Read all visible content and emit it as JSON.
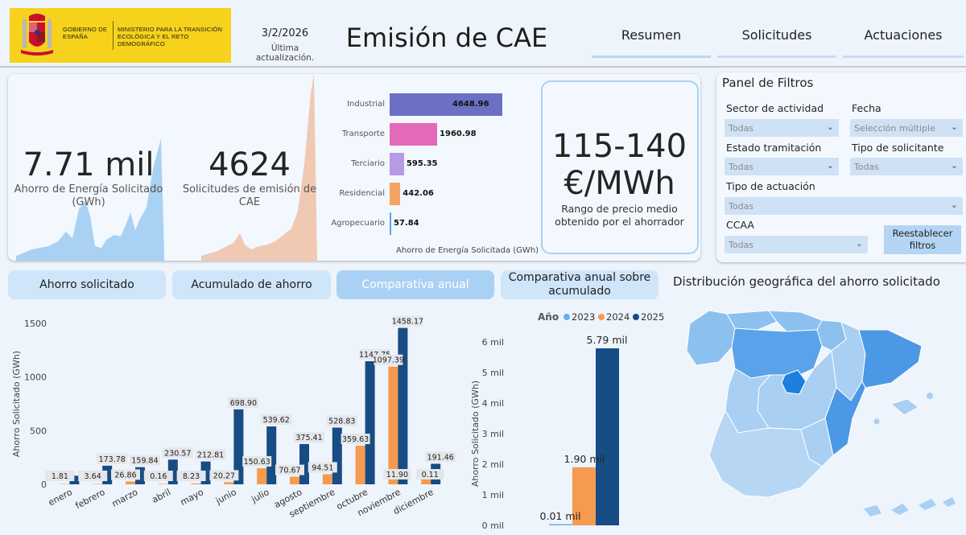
{
  "header": {
    "logo_gov": "GOBIERNO DE ESPAÑA",
    "logo_ministry": "MINISTERIO PARA LA TRANSICIÓN ECOLÓGICA Y EL RETO DEMOGRÁFICO",
    "date": "3/2/2026",
    "date_label": "Última actualización.",
    "title": "Emisión de CAE",
    "nav": [
      {
        "label": "Resumen",
        "active": true
      },
      {
        "label": "Solicitudes",
        "active": false
      },
      {
        "label": "Actuaciones",
        "active": false
      }
    ]
  },
  "kpis": {
    "ahorro_value": "7.71 mil",
    "ahorro_label": "Ahorro de Energía Solicitado (GWh)",
    "solicitudes_value": "4624",
    "solicitudes_label": "Solicitudes de emisión de CAE"
  },
  "sector_bars": {
    "axis_label": "Ahorro de Energía Solicitada (GWh)",
    "items": [
      {
        "label": "Industrial",
        "value": 4648.96,
        "text": "4648.96",
        "color": "#6b70c4"
      },
      {
        "label": "Transporte",
        "value": 1960.98,
        "text": "1960.98",
        "color": "#e569b9"
      },
      {
        "label": "Terciario",
        "value": 595.35,
        "text": "595.35",
        "color": "#b49be4"
      },
      {
        "label": "Residencial",
        "value": 442.06,
        "text": "442.06",
        "color": "#f5a462"
      },
      {
        "label": "Agropecuario",
        "value": 57.84,
        "text": "57.84",
        "color": "#5aa3e8"
      }
    ]
  },
  "price": {
    "value_line1": "115-140",
    "value_line2": "€/MWh",
    "label": "Rango de precio medio obtenido por el ahorrador"
  },
  "filters": {
    "title": "Panel de Filtros",
    "sector_label": "Sector de actividad",
    "sector_value": "Todas",
    "fecha_label": "Fecha",
    "fecha_value": "Selección múltiple",
    "estado_label": "Estado tramitación",
    "estado_value": "Todas",
    "tipo_sol_label": "Tipo de solicitante",
    "tipo_sol_value": "Todas",
    "tipo_act_label": "Tipo de actuación",
    "tipo_act_value": "Todas",
    "ccaa_label": "CCAA",
    "ccaa_value": "Todas",
    "reset_button": "Reestablecer filtros"
  },
  "tabs": [
    {
      "label": "Ahorro solicitado",
      "active": false
    },
    {
      "label": "Acumulado de ahorro",
      "active": false
    },
    {
      "label": "Comparativa anual",
      "active": true
    },
    {
      "label": "Comparativa anual sobre acumulado",
      "active": false
    }
  ],
  "map": {
    "title": "Distribución geográfica del ahorro solicitado"
  },
  "colors": {
    "y2023": "#63b1ef",
    "y2024": "#f59a4e",
    "y2025": "#174d84"
  },
  "chart_data": [
    {
      "type": "bar",
      "title": "",
      "xlabel": "",
      "ylabel": "Ahorro Solicitado (GWh)",
      "ylim": [
        0,
        1500
      ],
      "yticks": [
        0,
        500,
        1000,
        1500
      ],
      "categories": [
        "enero",
        "febrero",
        "marzo",
        "abril",
        "mayo",
        "junio",
        "julio",
        "agosto",
        "septiembre",
        "octubre",
        "noviembre",
        "diciembre"
      ],
      "series": [
        {
          "name": "2024",
          "values": [
            1.81,
            3.64,
            26.86,
            0.16,
            8.23,
            20.27,
            150.63,
            70.67,
            94.51,
            359.63,
            1097.39,
            52.0
          ],
          "labels": [
            "1.81",
            "3.64",
            "26.86",
            "0.16",
            "8.23",
            "20.27",
            "150.63",
            "70.67",
            "94.51",
            "359.63",
            "1097.39",
            ""
          ]
        },
        {
          "name": "2025",
          "values": [
            80.0,
            173.78,
            159.84,
            230.57,
            212.81,
            698.9,
            539.62,
            375.41,
            528.83,
            1147.75,
            1458.17,
            191.46
          ],
          "labels": [
            "",
            "173.78",
            "159.84",
            "230.57",
            "212.81",
            "698.90",
            "539.62",
            "375.41",
            "528.83",
            "1147.75",
            "1458.17",
            "191.46"
          ]
        }
      ],
      "extra_labels": [
        {
          "category": "noviembre",
          "text": "11.90"
        },
        {
          "category": "diciembre",
          "text": "0.11"
        }
      ]
    },
    {
      "type": "bar",
      "title": "",
      "xlabel": "",
      "ylabel": "Ahorro Solicitado (GWh)",
      "legend_title": "Año",
      "ylim": [
        0,
        6000
      ],
      "yticks": [
        "0 mil",
        "1 mil",
        "2 mil",
        "3 mil",
        "4 mil",
        "5 mil",
        "6 mil"
      ],
      "categories": [
        "2023",
        "2024",
        "2025"
      ],
      "values": [
        10,
        1900,
        5790
      ],
      "labels": [
        "0.01 mil",
        "1.90 mil",
        "5.79 mil"
      ]
    }
  ]
}
